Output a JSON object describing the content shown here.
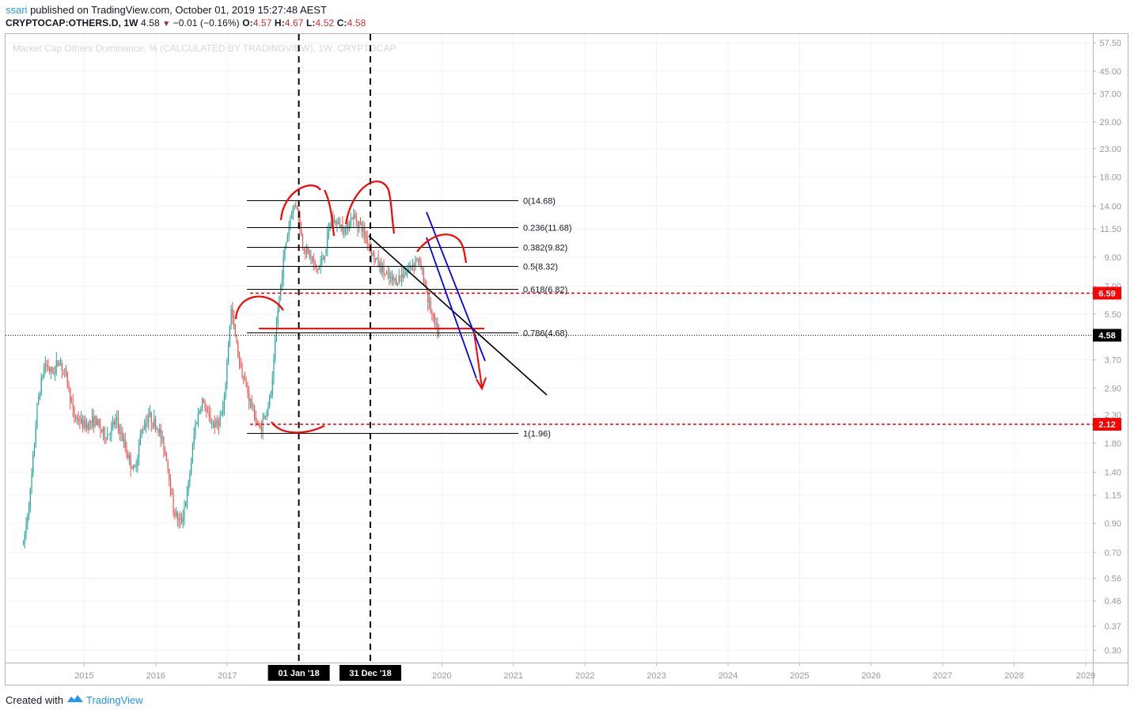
{
  "header": {
    "user": "ssari",
    "published_text": " published on TradingView.com, October 01, 2019 15:27:48 AEST",
    "symbol": "CRYPTOCAP:OTHERS.D, 1W",
    "last": "4.58",
    "change": "−0.01 (−0.16%)",
    "o_label": "O:",
    "o": "4.57",
    "h_label": "H:",
    "h": "4.67",
    "l_label": "L:",
    "l": "4.52",
    "c_label": "C:",
    "c": "4.58"
  },
  "footer": {
    "created_with": "Created with",
    "brand": "TradingView"
  },
  "colors": {
    "up": "#26a69a",
    "down": "#ef5350",
    "drawing_red": "#ff0000",
    "drawing_blue": "#0000ff",
    "axis_text": "#999999",
    "grid": "#f0f3fa"
  },
  "chart_data": {
    "type": "candlestick",
    "title": "Market Cap Others Dominance, % (CALCULATED BY TRADINGVIEW), 1W, CRYPTOCAP",
    "scale": "log",
    "ylim": [
      0.27,
      62
    ],
    "xlim": [
      2013.9,
      2029.1
    ],
    "y_ticks": [
      "57.50",
      "45.00",
      "37.00",
      "29.00",
      "23.00",
      "18.00",
      "14.00",
      "11.50",
      "9.00",
      "7.00",
      "5.50",
      "3.70",
      "2.90",
      "2.30",
      "1.80",
      "1.40",
      "1.15",
      "0.90",
      "0.70",
      "0.56",
      "0.46",
      "0.37",
      "0.30"
    ],
    "x_ticks": [
      "2015",
      "2016",
      "2017",
      "2020",
      "2021",
      "2022",
      "2023",
      "2024",
      "2025",
      "2026",
      "2027",
      "2028",
      "2029"
    ],
    "series_outline": [
      [
        2014.15,
        0.75
      ],
      [
        2014.25,
        1.2
      ],
      [
        2014.35,
        2.6
      ],
      [
        2014.45,
        3.6
      ],
      [
        2014.55,
        3.3
      ],
      [
        2014.65,
        3.7
      ],
      [
        2014.75,
        3.2
      ],
      [
        2014.85,
        2.3
      ],
      [
        2015.0,
        2.1
      ],
      [
        2015.15,
        2.2
      ],
      [
        2015.3,
        1.9
      ],
      [
        2015.45,
        2.2
      ],
      [
        2015.6,
        1.65
      ],
      [
        2015.7,
        1.4
      ],
      [
        2015.8,
        2.0
      ],
      [
        2015.9,
        2.3
      ],
      [
        2016.05,
        2.0
      ],
      [
        2016.15,
        1.6
      ],
      [
        2016.25,
        1.0
      ],
      [
        2016.35,
        0.9
      ],
      [
        2016.45,
        1.2
      ],
      [
        2016.55,
        2.1
      ],
      [
        2016.65,
        2.6
      ],
      [
        2016.75,
        2.2
      ],
      [
        2016.85,
        2.1
      ],
      [
        2016.95,
        2.4
      ],
      [
        2017.05,
        5.8
      ],
      [
        2017.15,
        3.9
      ],
      [
        2017.22,
        3.2
      ],
      [
        2017.3,
        2.7
      ],
      [
        2017.38,
        2.3
      ],
      [
        2017.45,
        2.0
      ],
      [
        2017.55,
        2.4
      ],
      [
        2017.62,
        2.8
      ],
      [
        2017.7,
        5.5
      ],
      [
        2017.8,
        9.5
      ],
      [
        2017.9,
        13.5
      ],
      [
        2017.97,
        14.5
      ],
      [
        2018.05,
        10.0
      ],
      [
        2018.15,
        9.2
      ],
      [
        2018.25,
        8.0
      ],
      [
        2018.35,
        9.0
      ],
      [
        2018.45,
        12.5
      ],
      [
        2018.55,
        12.0
      ],
      [
        2018.65,
        11.5
      ],
      [
        2018.75,
        12.8
      ],
      [
        2018.85,
        12.0
      ],
      [
        2018.95,
        10.5
      ],
      [
        2019.05,
        9.0
      ],
      [
        2019.15,
        8.2
      ],
      [
        2019.25,
        7.5
      ],
      [
        2019.35,
        7.3
      ],
      [
        2019.45,
        7.8
      ],
      [
        2019.55,
        8.2
      ],
      [
        2019.65,
        9.0
      ],
      [
        2019.75,
        7.5
      ],
      [
        2019.82,
        6.0
      ],
      [
        2019.9,
        5.0
      ],
      [
        2019.96,
        4.58
      ]
    ],
    "last_price": 4.58,
    "price_labels": [
      "6.59",
      "4.58",
      "2.12"
    ],
    "fib_levels": [
      {
        "label": "0(14.68)",
        "value": 14.68
      },
      {
        "label": "0.236(11.68)",
        "value": 11.68
      },
      {
        "label": "0.382(9.82)",
        "value": 9.82
      },
      {
        "label": "0.5(8.32)",
        "value": 8.32
      },
      {
        "label": "0.618(6.82)",
        "value": 6.82
      },
      {
        "label": "0.786(4.68)",
        "value": 4.68
      },
      {
        "label": "1(1.96)",
        "value": 1.96
      }
    ],
    "date_markers": [
      {
        "label": "01 Jan '18",
        "x": 2018.0
      },
      {
        "label": "31 Dec '18",
        "x": 2019.0
      }
    ],
    "horizontal_levels": [
      6.59,
      2.12
    ],
    "support_line": 4.85
  }
}
